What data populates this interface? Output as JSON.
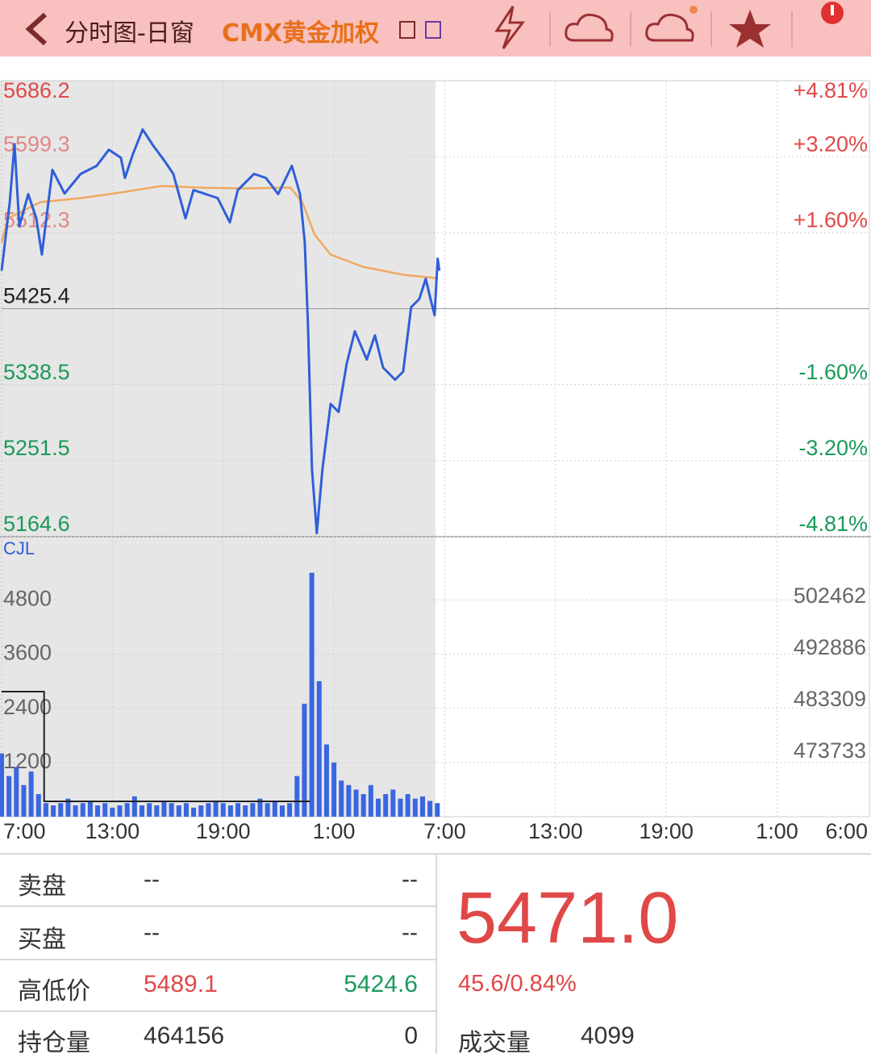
{
  "header": {
    "title": "分时图-日窗",
    "instrument": "CMX黄金加权"
  },
  "chart_data": [
    {
      "type": "line",
      "xlim": [
        0,
        47
      ],
      "xticks": [
        {
          "value": 0,
          "label": "7:00"
        },
        {
          "value": 6,
          "label": "13:00"
        },
        {
          "value": 12,
          "label": "19:00"
        },
        {
          "value": 18,
          "label": "1:00"
        },
        {
          "value": 24,
          "label": "7:00"
        },
        {
          "value": 30,
          "label": "13:00"
        },
        {
          "value": 36,
          "label": "19:00"
        },
        {
          "value": 42,
          "label": "1:00"
        },
        {
          "value": 47,
          "label": "6:00"
        }
      ],
      "ylim": [
        5164.6,
        5686.2
      ],
      "yticks": [
        5686.2,
        5599.3,
        5512.3,
        5425.4,
        5338.5,
        5251.5,
        5164.6
      ],
      "right_labels": [
        "+4.81%",
        "+3.20%",
        "+1.60%",
        "-1.60%",
        "-3.20%",
        "-4.81%"
      ],
      "series": [
        {
          "color": "#2f5fd8",
          "x": [
            0,
            0.44,
            0.7,
            0.96,
            1.44,
            1.88,
            2.18,
            2.75,
            3.41,
            4.28,
            5.15,
            5.81,
            6.46,
            6.68,
            7.12,
            7.64,
            8.21,
            8.86,
            9.3,
            9.96,
            10.39,
            11.05,
            11.7,
            12.36,
            12.79,
            13.67,
            14.32,
            14.98,
            15.72,
            16.16,
            16.42,
            16.59,
            16.81,
            17.07,
            17.38,
            17.82,
            18.25,
            18.69,
            19.13,
            19.78,
            20.22,
            20.66,
            21.31,
            21.75,
            22.18,
            22.62,
            22.97,
            23.23,
            23.45,
            23.62,
            23.71
          ],
          "values": [
            5468.8,
            5547.3,
            5613.7,
            5519.6,
            5556.5,
            5528.8,
            5487.3,
            5584.2,
            5557.1,
            5579.6,
            5588.8,
            5607.3,
            5598.0,
            5575.0,
            5602.7,
            5630.4,
            5611.9,
            5593.4,
            5579.6,
            5528.8,
            5561.0,
            5556.5,
            5551.9,
            5524.2,
            5561.0,
            5579.6,
            5575.0,
            5556.5,
            5588.8,
            5556.5,
            5501.1,
            5408.8,
            5242.6,
            5168.7,
            5242.6,
            5316.5,
            5307.2,
            5362.6,
            5399.5,
            5367.2,
            5394.9,
            5358.0,
            5344.2,
            5353.4,
            5427.2,
            5436.5,
            5459.6,
            5436.5,
            5418.0,
            5482.6,
            5468.8
          ]
        },
        {
          "color": "#f0a860",
          "x": [
            0,
            0.35,
            2.1,
            4.28,
            6.46,
            8.65,
            10.83,
            13.02,
            15.64,
            16.29,
            16.95,
            17.82,
            19.56,
            21.75,
            23.5
          ],
          "values": [
            5501.1,
            5528.8,
            5547.3,
            5551.9,
            5558.3,
            5565.7,
            5563.9,
            5563.0,
            5563.9,
            5547.3,
            5510.3,
            5487.3,
            5473.4,
            5464.2,
            5460.5
          ]
        }
      ]
    },
    {
      "type": "bar",
      "label": "CJL",
      "color": "#3a66e0",
      "ylim": [
        0,
        6200
      ],
      "yticks": [
        1200,
        2400,
        3600,
        4800
      ],
      "y2lim": [
        461762,
        513685
      ],
      "y2ticks": [
        473733,
        483309,
        492886,
        502462
      ],
      "x": [
        0,
        0.4,
        0.8,
        1.2,
        1.6,
        2,
        2.4,
        2.8,
        3.2,
        3.6,
        4,
        4.4,
        4.8,
        5.2,
        5.6,
        6,
        6.4,
        6.8,
        7.2,
        7.6,
        8,
        8.4,
        8.8,
        9.2,
        9.6,
        10,
        10.4,
        10.8,
        11.2,
        11.6,
        12,
        12.4,
        12.8,
        13.2,
        13.6,
        14,
        14.4,
        14.8,
        15.2,
        15.6,
        16,
        16.4,
        16.8,
        17.2,
        17.6,
        18,
        18.4,
        18.8,
        19.2,
        19.6,
        20,
        20.4,
        20.8,
        21.2,
        21.6,
        22,
        22.4,
        22.8,
        23.2,
        23.6
      ],
      "values": [
        1400,
        900,
        1100,
        700,
        1000,
        500,
        300,
        250,
        300,
        400,
        250,
        300,
        350,
        250,
        300,
        200,
        250,
        300,
        450,
        250,
        300,
        250,
        350,
        300,
        250,
        300,
        200,
        250,
        300,
        350,
        300,
        250,
        300,
        250,
        300,
        400,
        300,
        350,
        250,
        300,
        900,
        2500,
        5400,
        3000,
        1600,
        1200,
        800,
        700,
        600,
        500,
        700,
        400,
        500,
        600,
        400,
        500,
        400,
        450,
        350,
        300
      ],
      "series": [
        {
          "axis": "y2",
          "color": "#222222",
          "x": [
            0,
            2.3,
            2.3,
            16.7
          ],
          "values": [
            484950,
            484950,
            464600,
            464600
          ]
        }
      ]
    }
  ],
  "quote": {
    "rows": [
      [
        "卖盘",
        "--",
        "--"
      ],
      [
        "买盘",
        "--",
        "--"
      ],
      [
        "高低价",
        "5489.1",
        "5424.6"
      ],
      [
        "持仓量",
        "464156",
        "0"
      ]
    ],
    "last": "5471.0",
    "change": "45.6/0.84%",
    "volume_label": "成交量",
    "volume": "4099"
  }
}
